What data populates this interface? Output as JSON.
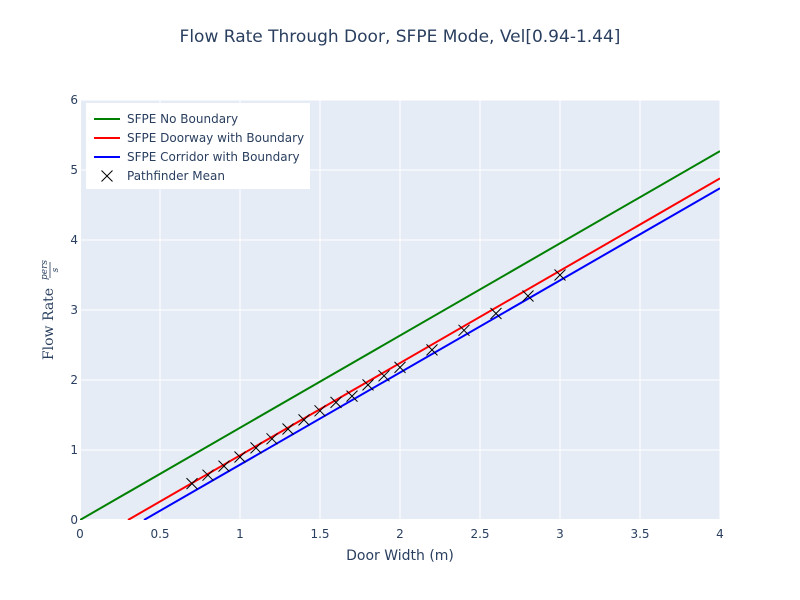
{
  "chart_data": {
    "type": "line",
    "title": "Flow Rate Through Door, SFPE Mode, Vel[0.94-1.44]",
    "xlabel": "Door Width (m)",
    "ylabel": "Flow Rate",
    "ylabel_unit_num": "pers",
    "ylabel_unit_den": "s",
    "xlim": [
      0,
      4
    ],
    "ylim": [
      0,
      6
    ],
    "xticks": [
      0,
      0.5,
      1,
      1.5,
      2,
      2.5,
      3,
      3.5,
      4
    ],
    "xtick_labels": [
      "0",
      "0.5",
      "1",
      "1.5",
      "2",
      "2.5",
      "3",
      "3.5",
      "4"
    ],
    "yticks": [
      0,
      1,
      2,
      3,
      4,
      5,
      6
    ],
    "ytick_labels": [
      "0",
      "1",
      "2",
      "3",
      "4",
      "5",
      "6"
    ],
    "grid": true,
    "legend_position": "top-left",
    "series": [
      {
        "name": "SFPE No Boundary",
        "kind": "line",
        "color": "#008000",
        "x": [
          0,
          4
        ],
        "y": [
          0,
          5.27
        ]
      },
      {
        "name": "SFPE Doorway with Boundary",
        "kind": "line",
        "color": "#ff0000",
        "x": [
          0.3,
          4
        ],
        "y": [
          0,
          4.88
        ]
      },
      {
        "name": "SFPE Corridor with Boundary",
        "kind": "line",
        "color": "#0000ff",
        "x": [
          0.4,
          4
        ],
        "y": [
          0,
          4.74
        ]
      },
      {
        "name": "Pathfinder Mean",
        "kind": "marker",
        "marker": "x",
        "color": "#000000",
        "x": [
          0.7,
          0.8,
          0.9,
          1.0,
          1.1,
          1.2,
          1.3,
          1.4,
          1.5,
          1.6,
          1.7,
          1.8,
          1.9,
          2.0,
          2.2,
          2.4,
          2.6,
          2.8,
          3.0
        ],
        "y": [
          0.52,
          0.64,
          0.77,
          0.9,
          1.03,
          1.16,
          1.3,
          1.43,
          1.56,
          1.68,
          1.77,
          1.93,
          2.06,
          2.18,
          2.43,
          2.71,
          2.95,
          3.2,
          3.5
        ]
      }
    ]
  }
}
